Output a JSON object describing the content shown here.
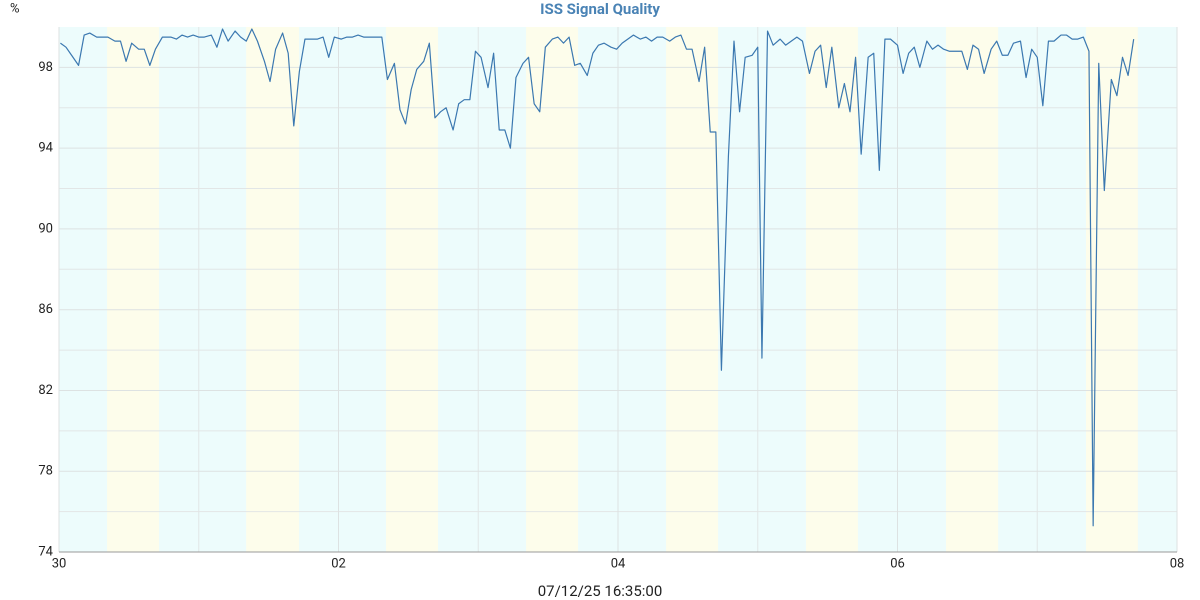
{
  "chart_data": {
    "type": "line",
    "title": "ISS Signal Quality",
    "y_label": "%",
    "footer": "07/12/25 16:35:00",
    "xlim": [
      0,
      8
    ],
    "xticks": [
      {
        "value": 0,
        "label": "30"
      },
      {
        "value": 2,
        "label": "02"
      },
      {
        "value": 4,
        "label": "04"
      },
      {
        "value": 6,
        "label": "06"
      },
      {
        "value": 8,
        "label": "08"
      }
    ],
    "ylim": [
      74,
      100
    ],
    "yticks": [
      74,
      78,
      82,
      86,
      90,
      94,
      98
    ],
    "grid": true,
    "background_color": "#edfcfc",
    "shaded_color": "#fdfdeb",
    "shaded_periods": [
      [
        0.344,
        0.716
      ],
      [
        1.339,
        1.718
      ],
      [
        2.34,
        2.712
      ],
      [
        3.342,
        3.714
      ],
      [
        4.344,
        4.716
      ],
      [
        5.345,
        5.717
      ],
      [
        6.347,
        6.72
      ],
      [
        7.349,
        7.72
      ]
    ],
    "x": [
      0.01,
      0.05,
      0.09,
      0.14,
      0.18,
      0.22,
      0.27,
      0.35,
      0.4,
      0.44,
      0.48,
      0.52,
      0.57,
      0.61,
      0.65,
      0.69,
      0.74,
      0.8,
      0.84,
      0.88,
      0.92,
      0.96,
      1.0,
      1.04,
      1.09,
      1.13,
      1.17,
      1.21,
      1.26,
      1.3,
      1.34,
      1.38,
      1.42,
      1.47,
      1.51,
      1.55,
      1.6,
      1.64,
      1.68,
      1.72,
      1.76,
      1.81,
      1.85,
      1.89,
      1.93,
      1.97,
      2.02,
      2.06,
      2.1,
      2.14,
      2.18,
      2.23,
      2.27,
      2.31,
      2.35,
      2.4,
      2.44,
      2.48,
      2.52,
      2.56,
      2.61,
      2.65,
      2.69,
      2.73,
      2.77,
      2.82,
      2.86,
      2.9,
      2.94,
      2.98,
      3.02,
      3.07,
      3.11,
      3.15,
      3.19,
      3.23,
      3.27,
      3.32,
      3.36,
      3.4,
      3.44,
      3.48,
      3.53,
      3.57,
      3.61,
      3.65,
      3.69,
      3.73,
      3.78,
      3.82,
      3.86,
      3.9,
      3.95,
      3.99,
      4.03,
      4.07,
      4.11,
      4.16,
      4.2,
      4.24,
      4.28,
      4.32,
      4.37,
      4.41,
      4.45,
      4.49,
      4.53,
      4.58,
      4.62,
      4.66,
      4.7,
      4.74,
      4.79,
      4.83,
      4.87,
      4.91,
      4.96,
      5.0,
      5.03,
      5.07,
      5.11,
      5.16,
      5.2,
      5.24,
      5.28,
      5.32,
      5.37,
      5.41,
      5.45,
      5.49,
      5.53,
      5.58,
      5.62,
      5.66,
      5.7,
      5.74,
      5.79,
      5.83,
      5.87,
      5.91,
      5.95,
      6.0,
      6.04,
      6.08,
      6.12,
      6.16,
      6.21,
      6.25,
      6.29,
      6.33,
      6.37,
      6.42,
      6.46,
      6.5,
      6.54,
      6.58,
      6.62,
      6.67,
      6.71,
      6.75,
      6.79,
      6.83,
      6.88,
      6.92,
      6.96,
      7.0,
      7.04,
      7.08,
      7.12,
      7.17,
      7.21,
      7.25,
      7.29,
      7.33,
      7.37,
      7.4,
      7.44,
      7.48,
      7.53,
      7.57,
      7.61,
      7.65,
      7.69
    ],
    "series": [
      {
        "color": "#3b78b0",
        "values": [
          99.2,
          99.0,
          98.6,
          98.1,
          99.6,
          99.7,
          99.5,
          99.5,
          99.3,
          99.3,
          98.3,
          99.2,
          98.9,
          98.9,
          98.1,
          98.9,
          99.5,
          99.5,
          99.4,
          99.6,
          99.5,
          99.6,
          99.5,
          99.5,
          99.6,
          99.0,
          99.9,
          99.3,
          99.8,
          99.5,
          99.3,
          99.9,
          99.3,
          98.3,
          97.3,
          98.9,
          99.7,
          98.7,
          95.1,
          97.8,
          99.4,
          99.4,
          99.4,
          99.5,
          98.5,
          99.5,
          99.4,
          99.5,
          99.5,
          99.6,
          99.5,
          99.5,
          99.5,
          99.5,
          97.4,
          98.2,
          95.9,
          95.2,
          96.9,
          97.9,
          98.3,
          99.2,
          95.5,
          95.8,
          96.0,
          94.9,
          96.2,
          96.4,
          96.4,
          98.8,
          98.5,
          97.0,
          98.7,
          94.9,
          94.9,
          94.0,
          97.5,
          98.2,
          98.5,
          96.2,
          95.8,
          99.0,
          99.4,
          99.5,
          99.2,
          99.5,
          98.1,
          98.2,
          97.6,
          98.7,
          99.1,
          99.2,
          99.0,
          98.9,
          99.2,
          99.4,
          99.6,
          99.4,
          99.5,
          99.3,
          99.5,
          99.5,
          99.3,
          99.5,
          99.6,
          98.9,
          98.9,
          97.3,
          99.0,
          94.8,
          94.8,
          83.0,
          93.6,
          99.3,
          95.8,
          98.5,
          98.6,
          99.0,
          83.6,
          99.8,
          99.1,
          99.4,
          99.1,
          99.3,
          99.5,
          99.3,
          97.7,
          98.8,
          99.1,
          97.0,
          99.0,
          96.0,
          97.2,
          95.8,
          98.5,
          93.7,
          98.5,
          98.7,
          92.9,
          99.4,
          99.4,
          99.1,
          97.7,
          98.7,
          99.0,
          98.0,
          99.3,
          98.9,
          99.1,
          98.9,
          98.8,
          98.8,
          98.8,
          97.9,
          99.1,
          98.9,
          97.7,
          98.9,
          99.3,
          98.6,
          98.6,
          99.2,
          99.3,
          97.5,
          98.9,
          98.5,
          96.1,
          99.3,
          99.3,
          99.6,
          99.6,
          99.4,
          99.4,
          99.5,
          98.8,
          75.3,
          98.2,
          91.9,
          97.4,
          96.6,
          98.5,
          97.6,
          99.4
        ]
      }
    ]
  }
}
